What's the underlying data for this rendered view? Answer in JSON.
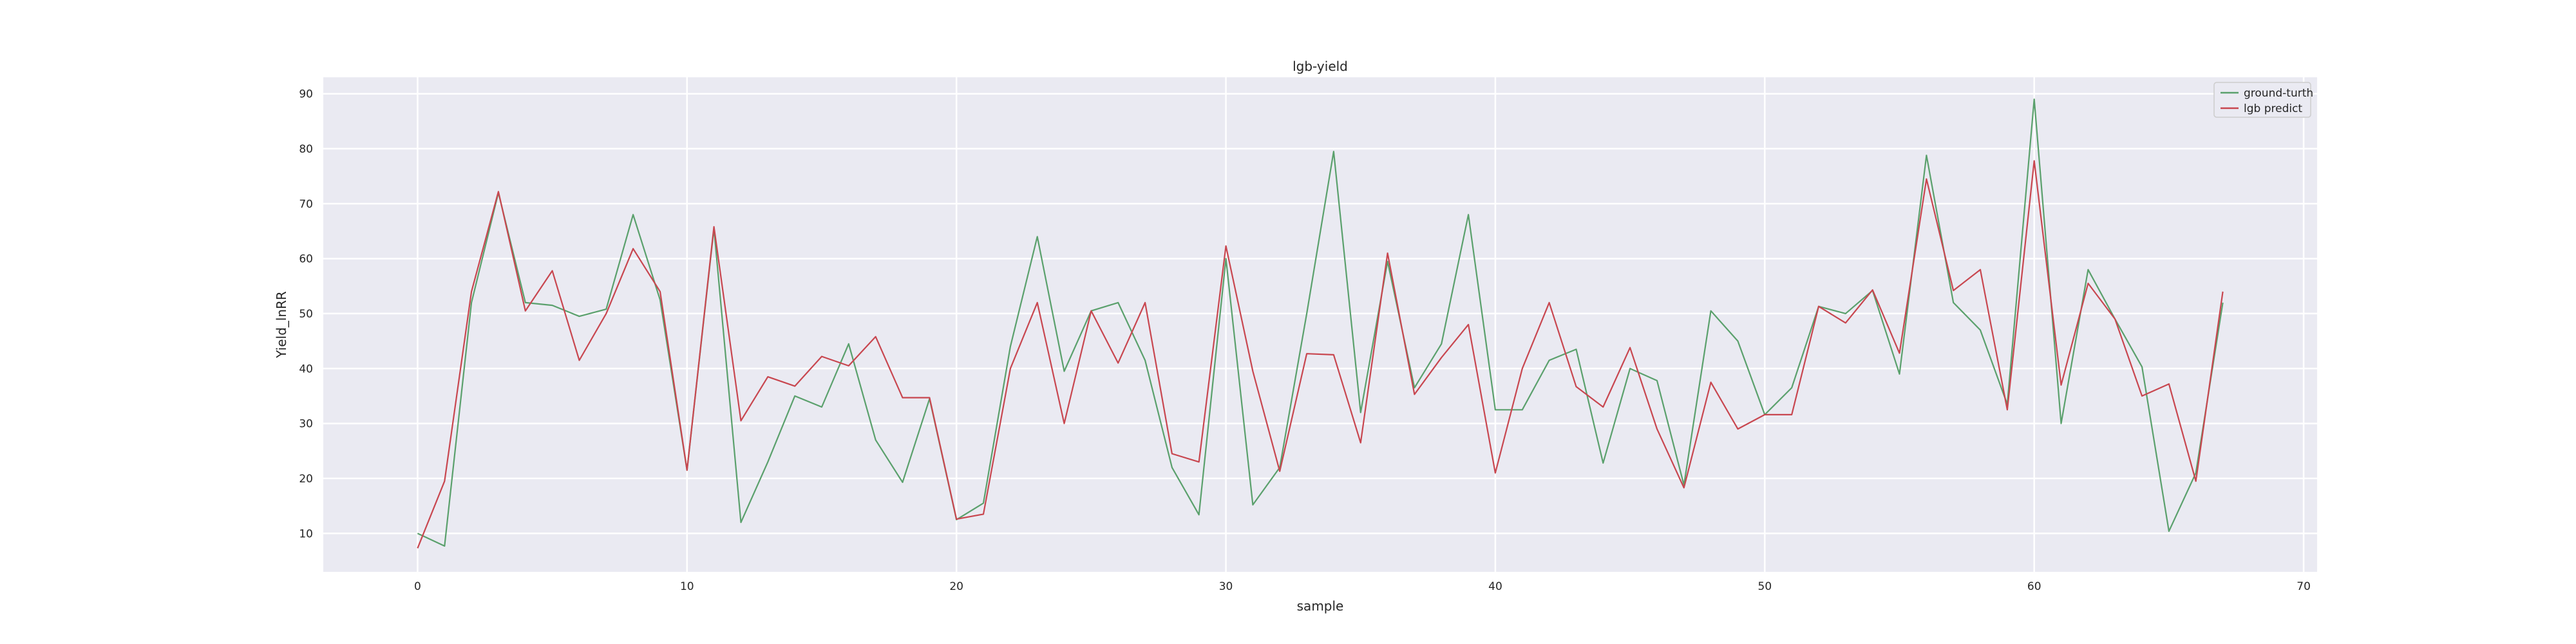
{
  "colors": {
    "ground_truth": "#5aa06c",
    "prediction": "#c8464f",
    "plot_background": "#eaeaf2",
    "grid": "#ffffff"
  },
  "chart_data": {
    "type": "line",
    "title": "lgb-yield",
    "xlabel": "sample",
    "ylabel": "Yield_lnRR",
    "xlim": [
      -3.5,
      70.5
    ],
    "ylim": [
      3,
      93
    ],
    "xticks": [
      0,
      10,
      20,
      30,
      40,
      50,
      60,
      70
    ],
    "yticks": [
      10,
      20,
      30,
      40,
      50,
      60,
      70,
      80,
      90
    ],
    "grid": true,
    "legend_position": "top-right",
    "x": [
      0,
      1,
      2,
      3,
      4,
      5,
      6,
      7,
      8,
      9,
      10,
      11,
      12,
      13,
      14,
      15,
      16,
      17,
      18,
      19,
      20,
      21,
      22,
      23,
      24,
      25,
      26,
      27,
      28,
      29,
      30,
      31,
      32,
      33,
      34,
      35,
      36,
      37,
      38,
      39,
      40,
      41,
      42,
      43,
      44,
      45,
      46,
      47,
      48,
      49,
      50,
      51,
      52,
      53,
      54,
      55,
      56,
      57,
      58,
      59,
      60,
      61,
      62,
      63,
      64,
      65,
      66,
      67
    ],
    "series": [
      {
        "name": "ground-turth",
        "color_key": "ground_truth",
        "values": [
          10,
          7.7,
          52,
          72,
          52,
          51.5,
          49.5,
          50.8,
          68,
          52.5,
          21.5,
          65.5,
          12,
          23,
          35,
          33,
          44.5,
          27,
          19.3,
          34.5,
          12.5,
          15.5,
          44,
          64,
          39.5,
          50.5,
          52,
          41.5,
          22,
          13.4,
          60,
          15.2,
          22,
          50,
          79.5,
          32,
          59.5,
          36.5,
          44.5,
          68,
          32.5,
          32.5,
          41.5,
          43.5,
          22.8,
          40,
          37.8,
          18.8,
          50.5,
          45,
          31.6,
          36.5,
          51.3,
          50,
          54.2,
          39,
          78.8,
          52,
          47,
          33.5,
          89,
          30,
          58,
          49,
          40.3,
          10.4,
          21,
          52
        ]
      },
      {
        "name": "lgb predict",
        "color_key": "prediction",
        "values": [
          7.3,
          19.5,
          54,
          72.2,
          50.5,
          57.8,
          41.5,
          50,
          61.8,
          54,
          21.5,
          65.8,
          30.5,
          38.5,
          36.8,
          42.2,
          40.5,
          45.8,
          34.7,
          34.7,
          12.6,
          13.5,
          40,
          52,
          30,
          50.5,
          41,
          52,
          24.5,
          23,
          62.3,
          39.5,
          21.3,
          42.7,
          42.5,
          26.5,
          61,
          35.3,
          42,
          48,
          21,
          40,
          52,
          36.7,
          33,
          43.8,
          29,
          18.3,
          37.5,
          29,
          31.6,
          31.6,
          51.3,
          48.3,
          54.3,
          42.8,
          74.5,
          54.2,
          58,
          32.5,
          77.8,
          37,
          55.5,
          49,
          35,
          37.2,
          19.5,
          54
        ]
      }
    ]
  }
}
